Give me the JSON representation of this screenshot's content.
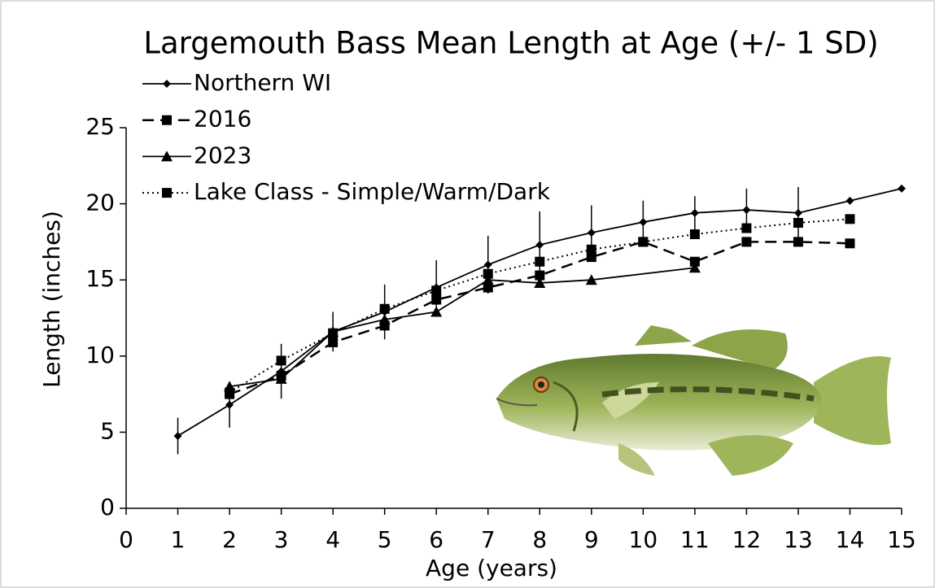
{
  "chart_data": {
    "type": "line",
    "title": "Largemouth Bass Mean Length at Age (+/- 1 SD)",
    "x_label": "Age (years)",
    "y_label": "Length (inches)",
    "xlim": [
      0,
      15
    ],
    "xticks": [
      0,
      1,
      2,
      3,
      4,
      5,
      6,
      7,
      8,
      9,
      10,
      11,
      12,
      13,
      14,
      15
    ],
    "ylim": [
      0,
      25
    ],
    "yticks": [
      0,
      5,
      10,
      15,
      20,
      25
    ],
    "legend": "top-left",
    "series": [
      {
        "name": "Northern WI",
        "color": "#000000",
        "line": "solid",
        "marker": "diamond",
        "x": [
          1,
          2,
          3,
          4,
          5,
          6,
          7,
          8,
          9,
          10,
          11,
          12,
          13,
          14,
          15
        ],
        "values": [
          4.75,
          6.8,
          9.0,
          11.6,
          12.9,
          14.5,
          16.0,
          17.3,
          18.1,
          18.8,
          19.4,
          19.6,
          19.4,
          20.2,
          21.0
        ],
        "error": [
          1.2,
          1.5,
          1.8,
          1.3,
          1.8,
          1.8,
          1.9,
          2.2,
          1.8,
          1.4,
          1.1,
          1.4,
          1.7,
          null,
          null
        ]
      },
      {
        "name": "2016",
        "color": "#000000",
        "line": "dashed",
        "marker": "square",
        "x": [
          2,
          3,
          4,
          5,
          6,
          7,
          8,
          9,
          10,
          11,
          12,
          13,
          14
        ],
        "values": [
          7.5,
          8.7,
          10.9,
          12.0,
          13.7,
          14.5,
          15.3,
          16.5,
          17.5,
          16.2,
          17.5,
          17.5,
          17.4
        ]
      },
      {
        "name": "2023",
        "color": "#000000",
        "line": "solid",
        "marker": "triangle",
        "x": [
          2,
          3,
          4,
          5,
          6,
          7,
          8,
          9,
          11
        ],
        "values": [
          8.0,
          8.5,
          11.6,
          12.4,
          12.9,
          15.0,
          14.8,
          15.0,
          15.8
        ]
      },
      {
        "name": "Lake Class - Simple/Warm/Dark",
        "color": "#000000",
        "line": "dotted",
        "marker": "square",
        "x": [
          2,
          3,
          4,
          5,
          6,
          7,
          8,
          9,
          10,
          11,
          12,
          13,
          14
        ],
        "values": [
          7.6,
          9.7,
          11.5,
          13.1,
          14.3,
          15.4,
          16.2,
          17.0,
          17.5,
          18.0,
          18.4,
          18.75,
          19.0
        ]
      }
    ]
  }
}
